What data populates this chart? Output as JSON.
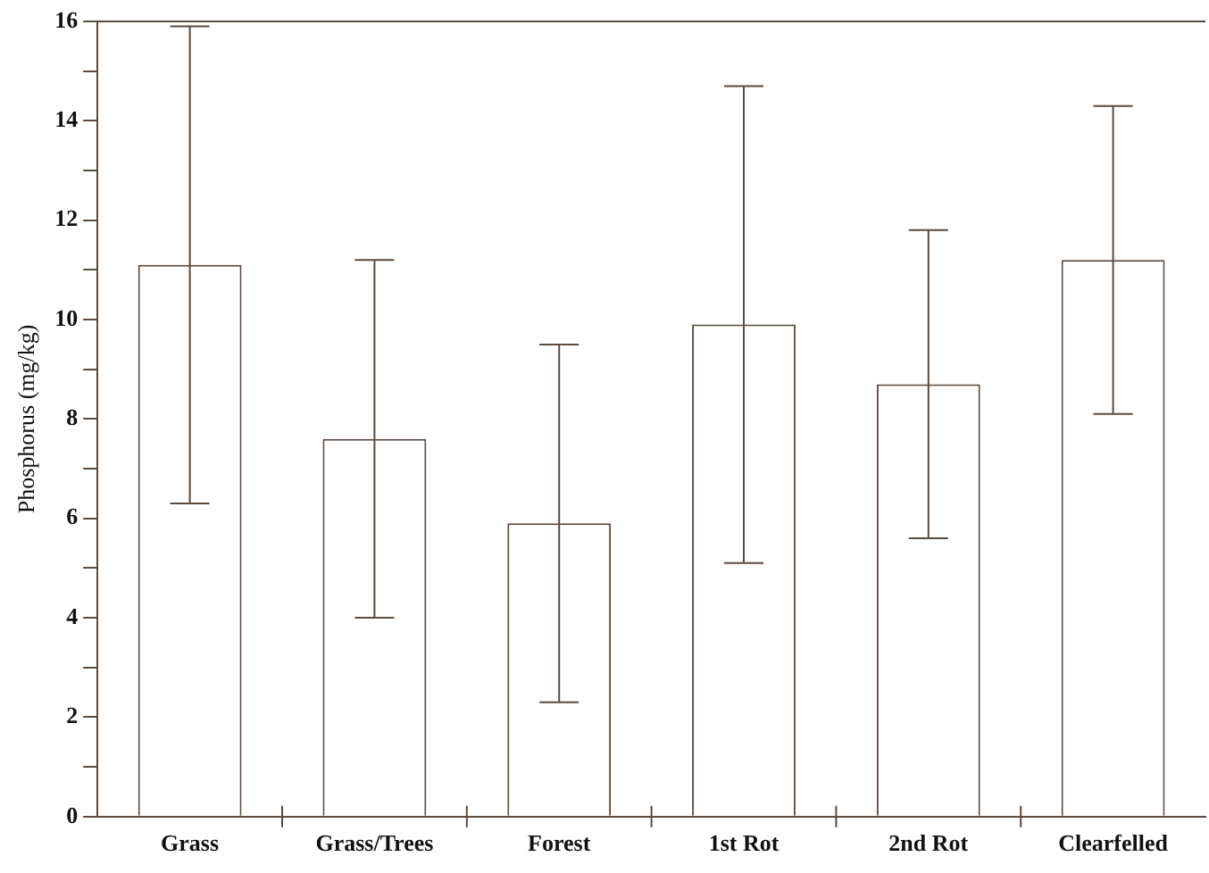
{
  "chart_data": {
    "type": "bar",
    "ylabel": "Phosphorus (mg/kg)",
    "categories": [
      "Grass",
      "Grass/Trees",
      "Forest",
      "1st Rot",
      "2nd Rot",
      "Clearfelled"
    ],
    "values": [
      11.1,
      7.6,
      5.9,
      9.9,
      8.7,
      11.2
    ],
    "errors": [
      4.8,
      3.6,
      3.6,
      4.8,
      3.1,
      3.1
    ],
    "color": "#ffffff",
    "ylim": [
      0,
      16
    ],
    "yticks": [
      0,
      {
        "value": 1,
        "label": null
      },
      2,
      {
        "value": 3,
        "label": null
      },
      4,
      {
        "value": 5,
        "label": null
      },
      6,
      {
        "value": 7,
        "label": null
      },
      8,
      {
        "value": 9,
        "label": null
      },
      10,
      {
        "value": 11,
        "label": null
      },
      12,
      {
        "value": 13,
        "label": null
      },
      14,
      {
        "value": 15,
        "label": null
      },
      16
    ],
    "grid": false,
    "legend": false
  }
}
